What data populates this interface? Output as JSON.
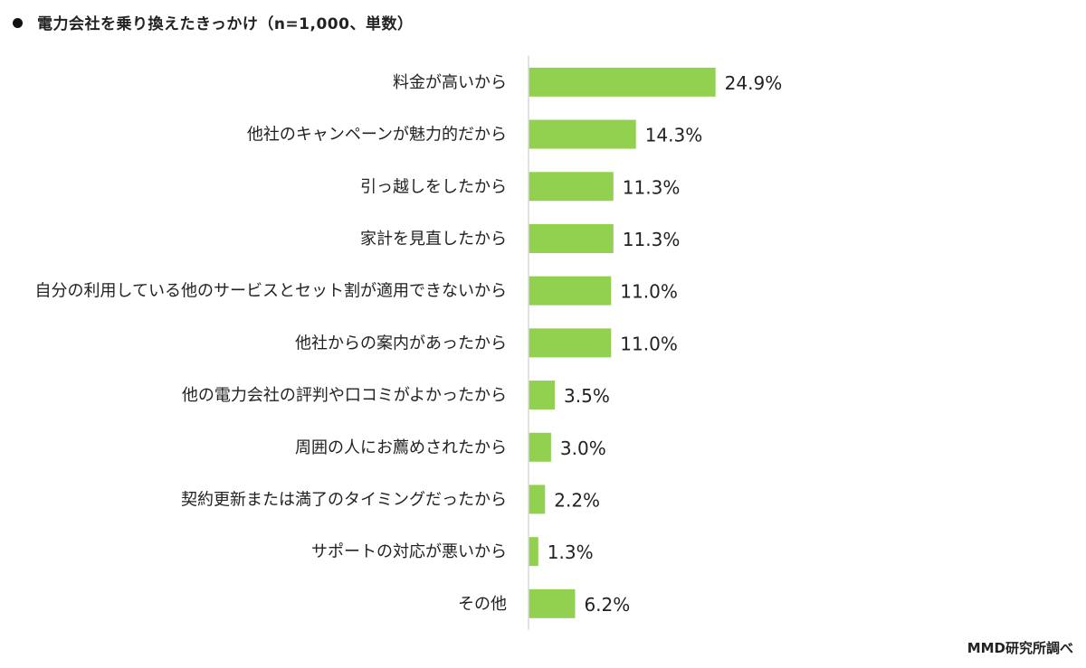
{
  "chart_data": {
    "type": "bar",
    "orientation": "horizontal",
    "title": "電力会社を乗り換えたきっかけ（n=1,000、単数）",
    "source": "MMD研究所調べ",
    "categories": [
      "料金が高いから",
      "他社のキャンペーンが魅力的だから",
      "引っ越しをしたから",
      "家計を見直したから",
      "自分の利用している他のサービスとセット割が適用できないから",
      "他社からの案内があったから",
      "他の電力会社の評判や口コミがよかったから",
      "周囲の人にお薦めされたから",
      "契約更新または満了のタイミングだったから",
      "サポートの対応が悪いから",
      "その他"
    ],
    "values": [
      24.9,
      14.3,
      11.3,
      11.3,
      11.0,
      11.0,
      3.5,
      3.0,
      2.2,
      1.3,
      6.2
    ],
    "value_labels": [
      "24.9%",
      "14.3%",
      "11.3%",
      "11.3%",
      "11.0%",
      "11.0%",
      "3.5%",
      "3.0%",
      "2.2%",
      "1.3%",
      "6.2%"
    ],
    "xlabel": "",
    "ylabel": "",
    "xlim": [
      0,
      72
    ],
    "grid": false,
    "bar_color": "#92d050"
  }
}
